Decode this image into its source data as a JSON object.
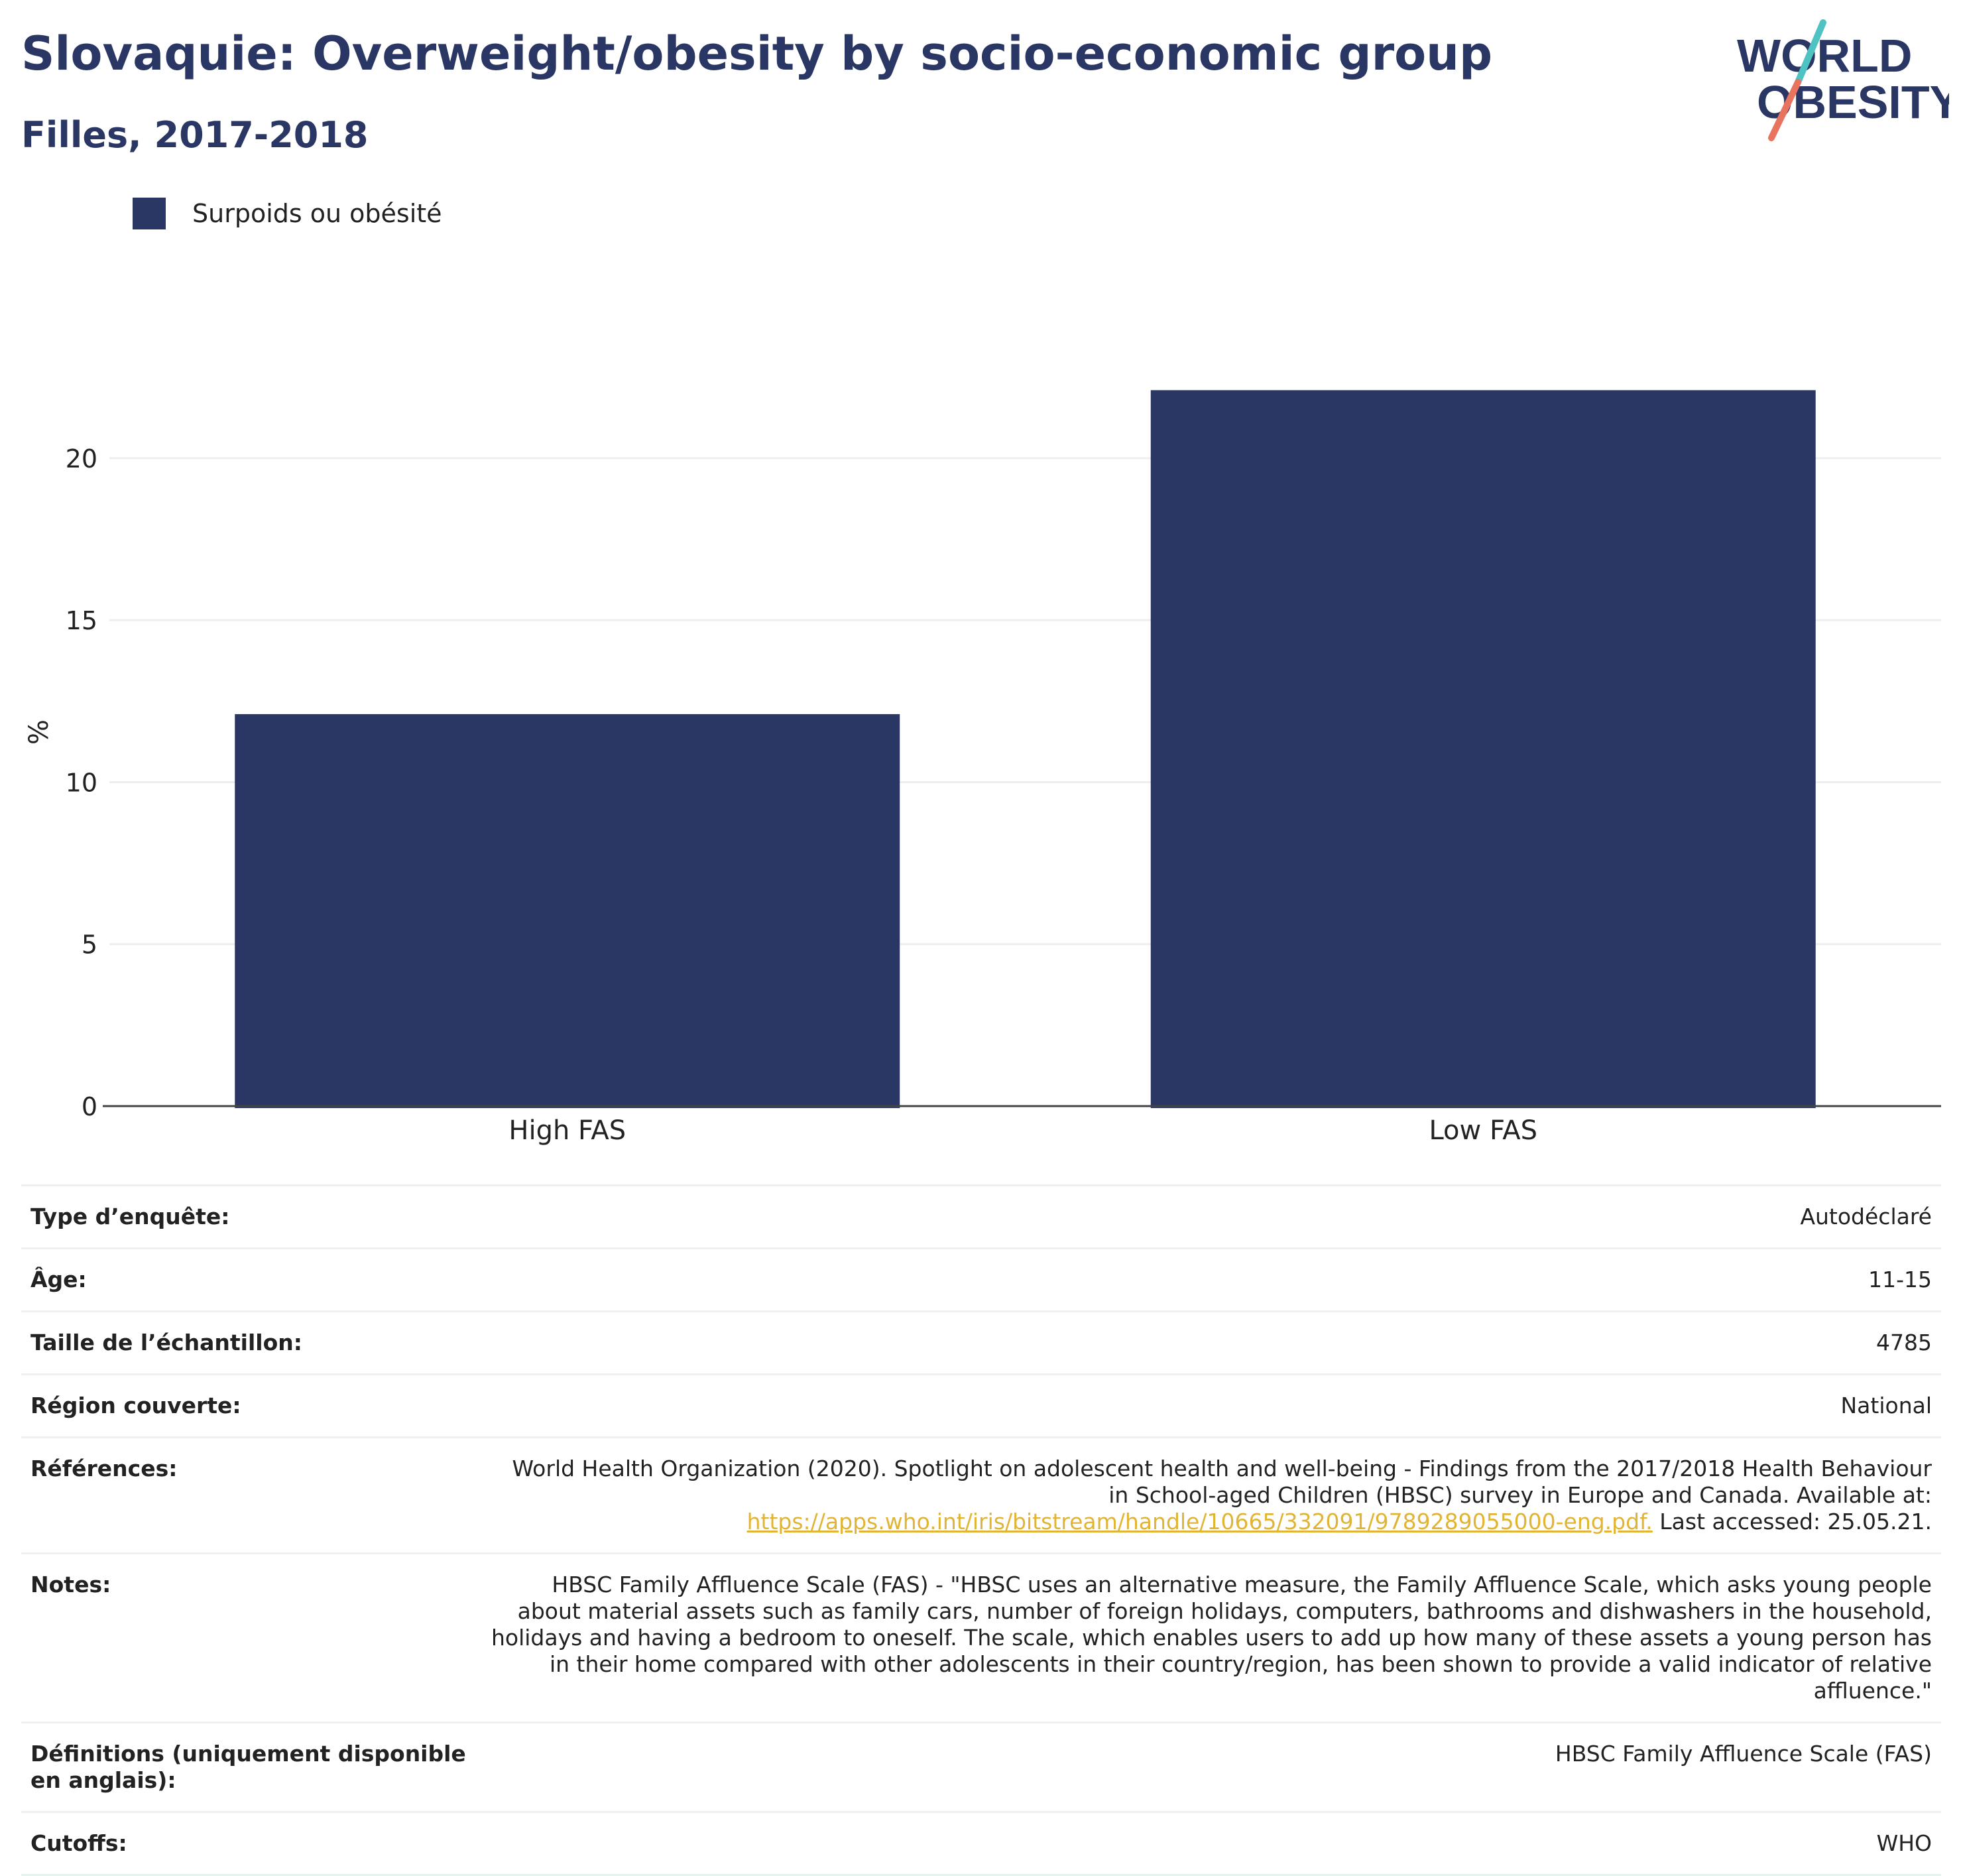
{
  "header": {
    "title": "Slovaquie: Overweight/obesity by socio-economic group",
    "subtitle": "Filles, 2017-2018"
  },
  "logo": {
    "line1": "WORLD",
    "line2": "OBESITY",
    "slash_colors": [
      "#4fc3c1",
      "#e8735e"
    ],
    "text_color": "#2a3663"
  },
  "colors": {
    "bar": "#2a3663",
    "grid": "#eeeeee",
    "axis": "#444444",
    "link": "#e2b434"
  },
  "chart_data": {
    "type": "bar",
    "categories": [
      "High FAS",
      "Low FAS"
    ],
    "series": [
      {
        "name": "Surpoids ou obésité",
        "values": [
          12.1,
          22.1
        ]
      }
    ],
    "title": "Slovaquie: Overweight/obesity by socio-economic group",
    "subtitle": "Filles, 2017-2018",
    "xlabel": "",
    "ylabel": "%",
    "ylim": [
      0,
      23.5
    ],
    "yticks": [
      0,
      5,
      10,
      15,
      20
    ],
    "grid": true,
    "legend": "top-left"
  },
  "info": {
    "rows": [
      {
        "key": "Type d’enquête:",
        "value": "Autodéclaré"
      },
      {
        "key": "Âge:",
        "value": "11-15"
      },
      {
        "key": "Taille de l’échantillon:",
        "value": "4785"
      },
      {
        "key": "Région couverte:",
        "value": "National"
      },
      {
        "key": "Références:",
        "value": "World Health Organization (2020). Spotlight on adolescent health and well-being - Findings from the 2017/2018 Health Behaviour in School-aged Children (HBSC) survey in Europe and Canada. Available at:",
        "link": "https://apps.who.int/iris/bitstream/handle/10665/332091/9789289055000-eng.pdf.",
        "suffix": " Last accessed: 25.05.21."
      },
      {
        "key": "Notes:",
        "value": "HBSC Family Affluence Scale (FAS) - \"HBSC uses an alternative measure, the Family Affluence Scale, which asks young people about material assets such as family cars, number of foreign holidays, computers, bathrooms and dishwashers in the household, holidays and having a bedroom to oneself. The scale, which enables users to add up how many of these assets a young person has in their home compared with other adolescents in their country/region, has been shown to provide a valid indicator of relative affluence.\""
      },
      {
        "key": "Définitions (uniquement disponible en anglais):",
        "value": "HBSC Family Affluence Scale (FAS)"
      },
      {
        "key": "Cutoffs:",
        "value": "WHO"
      }
    ]
  }
}
